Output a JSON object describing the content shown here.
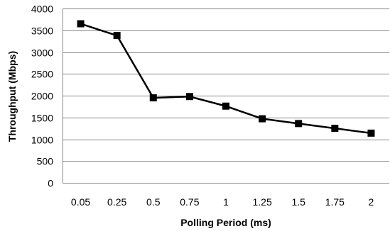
{
  "chart_data": {
    "type": "line",
    "title": "",
    "xlabel": "Polling Period (ms)",
    "ylabel": "Throughput (Mbps)",
    "categories": [
      "0.05",
      "0.25",
      "0.5",
      "0.75",
      "1",
      "1.25",
      "1.5",
      "1.75",
      "2"
    ],
    "series": [
      {
        "values": [
          3650,
          3380,
          1950,
          1980,
          1760,
          1470,
          1360,
          1250,
          1140
        ]
      }
    ],
    "ylim": [
      0,
      4000
    ],
    "yticks": [
      0,
      500,
      1000,
      1500,
      2000,
      2500,
      3000,
      3500,
      4000
    ],
    "grid": true,
    "legend": "none",
    "colors": {
      "line": "#000000",
      "marker": "#000000",
      "grid": "#878787"
    },
    "marker": "square"
  }
}
